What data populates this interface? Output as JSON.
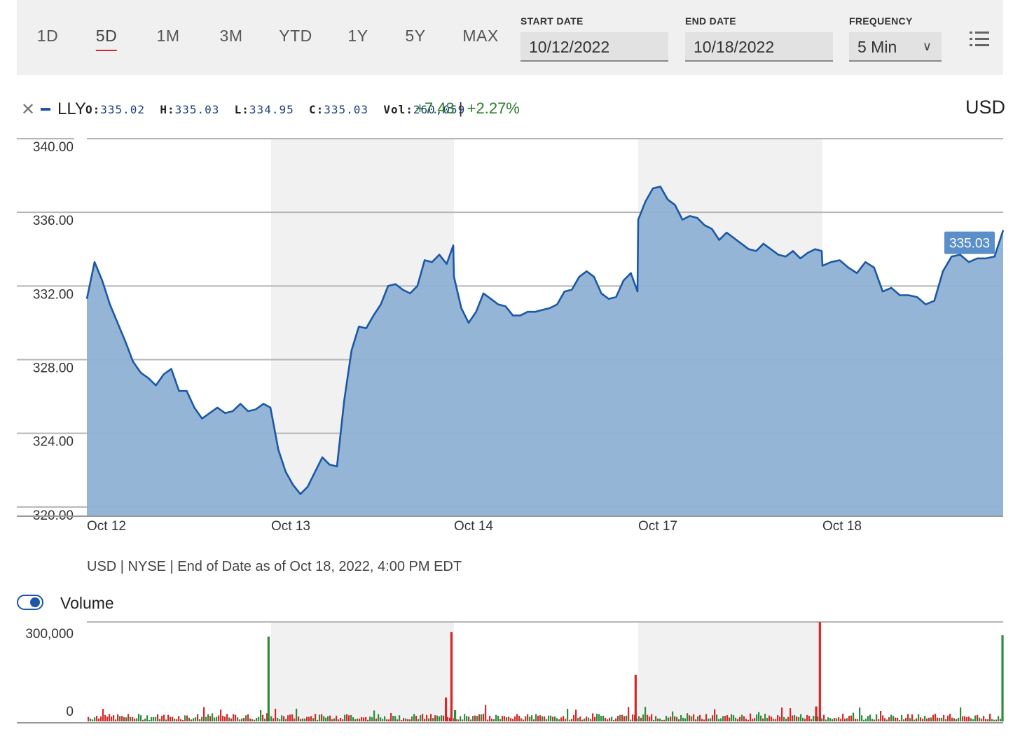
{
  "toolbar": {
    "ranges": [
      "1D",
      "5D",
      "1M",
      "3M",
      "YTD",
      "1Y",
      "5Y",
      "MAX"
    ],
    "active_range": "5D",
    "start_date_label": "START DATE",
    "start_date": "10/12/2022",
    "end_date_label": "END DATE",
    "end_date": "10/18/2022",
    "frequency_label": "FREQUENCY",
    "frequency": "5 Min",
    "menu_icon": "list-menu-icon"
  },
  "legend": {
    "close_icon": "close-icon",
    "symbol": "LLY",
    "open_label": "O:",
    "open": "335.02",
    "high_label": "H:",
    "high": "335.03",
    "low_label": "L:",
    "low": "334.95",
    "close_label": "C:",
    "close": "335.03",
    "vol_label": "Vol:",
    "volume": "260,059",
    "change": "+7.43",
    "separator": "|",
    "change_pct": "+2.27%",
    "currency": "USD"
  },
  "footnote": "USD | NYSE | End of Date as of Oct 18, 2022, 4:00 PM EDT",
  "volume_toggle": {
    "label": "Volume",
    "on": true
  },
  "colors": {
    "line": "#1c58a5",
    "area": "#8fb1d4",
    "up": "#2e8b3e",
    "down": "#d22a2a",
    "band": "#f1f1f1"
  },
  "chart_data": [
    {
      "type": "area",
      "series_name": "LLY",
      "y_ticks": [
        "340.00",
        "336.00",
        "332.00",
        "328.00",
        "324.00",
        "320.00"
      ],
      "y_tick_values": [
        340,
        336,
        332,
        328,
        324,
        320
      ],
      "ylim": [
        319.5,
        340
      ],
      "x_ticks": [
        "Oct 12",
        "Oct 13",
        "Oct 14",
        "Oct 17",
        "Oct 18"
      ],
      "last_price_label": "335.03",
      "days": [
        [
          331.3,
          333.3,
          332.3,
          331.0,
          330.0,
          329.0,
          327.9,
          327.3,
          327.0,
          326.6,
          327.2,
          327.5,
          326.3,
          326.3,
          325.4,
          324.8,
          325.1,
          325.4,
          325.1,
          325.2,
          325.6,
          325.2,
          325.3,
          325.6,
          325.4
        ],
        [
          325.2,
          323.1,
          321.9,
          321.2,
          320.7,
          321.1,
          321.9,
          322.7,
          322.3,
          322.2,
          325.8,
          328.5,
          329.8,
          329.7,
          330.4,
          331.0,
          332.0,
          332.1,
          331.8,
          331.6,
          332.0,
          333.4,
          333.3,
          333.7,
          333.2,
          334.2
        ],
        [
          332.5,
          330.8,
          330.0,
          330.6,
          331.6,
          331.3,
          331.0,
          330.9,
          330.4,
          330.4,
          330.6,
          330.6,
          330.7,
          330.8,
          331.0,
          331.7,
          331.8,
          332.5,
          332.8,
          332.5,
          331.6,
          331.3,
          331.4,
          332.3,
          332.7,
          331.7
        ],
        [
          335.6,
          336.6,
          337.3,
          337.4,
          336.7,
          336.4,
          335.6,
          335.8,
          335.7,
          335.3,
          335.1,
          334.5,
          334.9,
          334.6,
          334.3,
          334.0,
          333.9,
          334.3,
          334.0,
          333.7,
          333.6,
          333.9,
          333.5,
          333.8,
          334.0,
          333.9
        ],
        [
          333.1,
          333.3,
          333.4,
          333.0,
          332.7,
          333.3,
          333.0,
          331.7,
          331.9,
          331.5,
          331.5,
          331.4,
          331.0,
          331.2,
          332.8,
          333.6,
          333.7,
          333.3,
          333.5,
          333.5,
          333.6,
          335.03
        ]
      ]
    },
    {
      "type": "bar",
      "series_name": "Volume",
      "y_ticks": [
        "300,000",
        "0"
      ],
      "y_tick_values": [
        300000,
        0
      ],
      "ylim": [
        0,
        300000
      ],
      "spikes": [
        {
          "day": 0,
          "pos": 0.98,
          "value": 256000,
          "dir": "up"
        },
        {
          "day": 1,
          "pos": 0.98,
          "value": 270000,
          "dir": "down"
        },
        {
          "day": 1,
          "pos": 0.95,
          "value": 72000,
          "dir": "down"
        },
        {
          "day": 2,
          "pos": 0.0,
          "value": 34000,
          "dir": "up"
        },
        {
          "day": 2,
          "pos": 0.98,
          "value": 140000,
          "dir": "down"
        },
        {
          "day": 3,
          "pos": 0.98,
          "value": 300000,
          "dir": "down"
        },
        {
          "day": 3,
          "pos": 0.96,
          "value": 45000,
          "dir": "down"
        },
        {
          "day": 4,
          "pos": 0.99,
          "value": 260059,
          "dir": "up"
        }
      ]
    }
  ]
}
